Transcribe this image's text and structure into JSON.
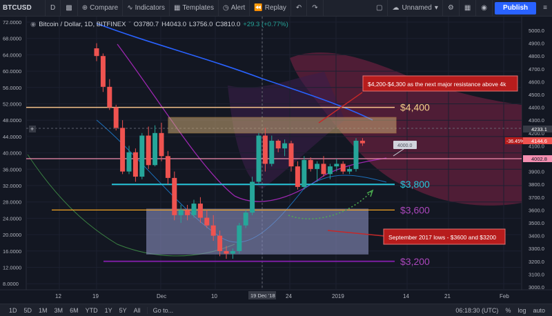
{
  "toolbar": {
    "symbol": "BTCUSD",
    "interval": "D",
    "compare": "Compare",
    "indicators": "Indicators",
    "templates": "Templates",
    "alert": "Alert",
    "replay": "Replay",
    "layout_name": "Unnamed",
    "publish": "Publish"
  },
  "legend": {
    "title": "Bitcoin / Dollar, 1D, BITFINEX",
    "open": "O3780.7",
    "high": "H4043.0",
    "low": "L3756.0",
    "close": "C3810.0",
    "change": "+29.3 (+0.77%)"
  },
  "left_axis": [
    "72.0000",
    "68.0000",
    "64.0000",
    "60.0000",
    "56.0000",
    "52.0000",
    "48.0000",
    "44.0000",
    "40.0000",
    "36.0000",
    "32.0000",
    "28.0000",
    "24.0000",
    "20.0000",
    "16.0000",
    "12.0000",
    "8.0000"
  ],
  "right_axis": [
    "5000.0",
    "4900.0",
    "4800.0",
    "4700.0",
    "4600.0",
    "4500.0",
    "4400.0",
    "4300.0",
    "4200.0",
    "4100.0",
    "4000.0",
    "3900.0",
    "3800.0",
    "3700.0",
    "3600.0",
    "3500.0",
    "3400.0",
    "3300.0",
    "3200.0",
    "3100.0",
    "3000.0"
  ],
  "right_markers": {
    "price_top": "4233.1",
    "pct": "-36.45%",
    "price_mid": "4144.6",
    "price_low": "4002.8"
  },
  "x_axis": [
    "12",
    "19",
    "Dec",
    "10",
    "19 Dec '18",
    "24",
    "2019",
    "14",
    "21",
    "Feb"
  ],
  "annotations": {
    "resistance_note": "$4,200-$4,300 as the next major resistance above 4k",
    "september_note": "September 2017 lows - $3600 and $3200",
    "lvl_4400": "$4,400",
    "lvl_3800": "$3,800",
    "lvl_3600": "$3,600",
    "lvl_3200": "$3,200",
    "tag_4000": "4000.0"
  },
  "bottom": {
    "ranges": [
      "1D",
      "5D",
      "1M",
      "3M",
      "6M",
      "YTD",
      "1Y",
      "5Y",
      "All"
    ],
    "goto": "Go to...",
    "time": "06:18:30 (UTC)",
    "pct": "%",
    "log": "log",
    "auto": "auto"
  },
  "colors": {
    "bg": "#131722",
    "up": "#26a69a",
    "down": "#ef5350",
    "cloud": "#5a1f3a",
    "accent_blue": "#2962ff"
  },
  "chart_data": {
    "type": "candlestick",
    "unit": "USD",
    "ylim": [
      3000,
      5000
    ],
    "candles": [
      {
        "o": 4860,
        "h": 4900,
        "l": 4760,
        "c": 4800
      },
      {
        "o": 4800,
        "h": 4820,
        "l": 4520,
        "c": 4560
      },
      {
        "o": 4560,
        "h": 4620,
        "l": 4380,
        "c": 4400
      },
      {
        "o": 4400,
        "h": 4420,
        "l": 4220,
        "c": 4240
      },
      {
        "o": 4240,
        "h": 4300,
        "l": 3880,
        "c": 3900
      },
      {
        "o": 3900,
        "h": 4100,
        "l": 3880,
        "c": 4050
      },
      {
        "o": 4050,
        "h": 4080,
        "l": 3820,
        "c": 3860
      },
      {
        "o": 3860,
        "h": 4200,
        "l": 3840,
        "c": 4180
      },
      {
        "o": 4180,
        "h": 4250,
        "l": 3920,
        "c": 3950
      },
      {
        "o": 3950,
        "h": 4260,
        "l": 3940,
        "c": 4200
      },
      {
        "o": 4200,
        "h": 4280,
        "l": 3980,
        "c": 4020
      },
      {
        "o": 4020,
        "h": 4060,
        "l": 3800,
        "c": 3850
      },
      {
        "o": 3850,
        "h": 3900,
        "l": 3520,
        "c": 3560
      },
      {
        "o": 3560,
        "h": 3640,
        "l": 3500,
        "c": 3600
      },
      {
        "o": 3600,
        "h": 3640,
        "l": 3520,
        "c": 3560
      },
      {
        "o": 3560,
        "h": 3680,
        "l": 3540,
        "c": 3650
      },
      {
        "o": 3650,
        "h": 3700,
        "l": 3500,
        "c": 3540
      },
      {
        "o": 3540,
        "h": 3600,
        "l": 3460,
        "c": 3480
      },
      {
        "o": 3480,
        "h": 3560,
        "l": 3360,
        "c": 3400
      },
      {
        "o": 3400,
        "h": 3440,
        "l": 3240,
        "c": 3280
      },
      {
        "o": 3280,
        "h": 3320,
        "l": 3220,
        "c": 3260
      },
      {
        "o": 3260,
        "h": 3300,
        "l": 3220,
        "c": 3280
      },
      {
        "o": 3280,
        "h": 3500,
        "l": 3260,
        "c": 3480
      },
      {
        "o": 3480,
        "h": 3600,
        "l": 3460,
        "c": 3580
      },
      {
        "o": 3580,
        "h": 3860,
        "l": 3560,
        "c": 3820
      },
      {
        "o": 3820,
        "h": 4200,
        "l": 3800,
        "c": 4180
      },
      {
        "o": 4180,
        "h": 4240,
        "l": 3900,
        "c": 3960
      },
      {
        "o": 3960,
        "h": 4180,
        "l": 3940,
        "c": 4140
      },
      {
        "o": 4140,
        "h": 4150,
        "l": 4050,
        "c": 4080
      },
      {
        "o": 4080,
        "h": 4150,
        "l": 4020,
        "c": 4120
      },
      {
        "o": 4120,
        "h": 4140,
        "l": 3900,
        "c": 3940
      },
      {
        "o": 3940,
        "h": 3980,
        "l": 3760,
        "c": 3780
      },
      {
        "o": 3780,
        "h": 4020,
        "l": 3760,
        "c": 3990
      },
      {
        "o": 3990,
        "h": 4010,
        "l": 3900,
        "c": 3920
      },
      {
        "o": 3920,
        "h": 3980,
        "l": 3820,
        "c": 3960
      },
      {
        "o": 3960,
        "h": 4020,
        "l": 3860,
        "c": 3880
      },
      {
        "o": 3880,
        "h": 3960,
        "l": 3840,
        "c": 3940
      },
      {
        "o": 3940,
        "h": 4000,
        "l": 3900,
        "c": 3960
      },
      {
        "o": 3960,
        "h": 3980,
        "l": 3880,
        "c": 3900
      },
      {
        "o": 3900,
        "h": 3940,
        "l": 3880,
        "c": 3920
      },
      {
        "o": 3920,
        "h": 4160,
        "l": 3900,
        "c": 4140
      },
      {
        "o": 4140,
        "h": 4160,
        "l": 4100,
        "c": 4120
      }
    ]
  }
}
